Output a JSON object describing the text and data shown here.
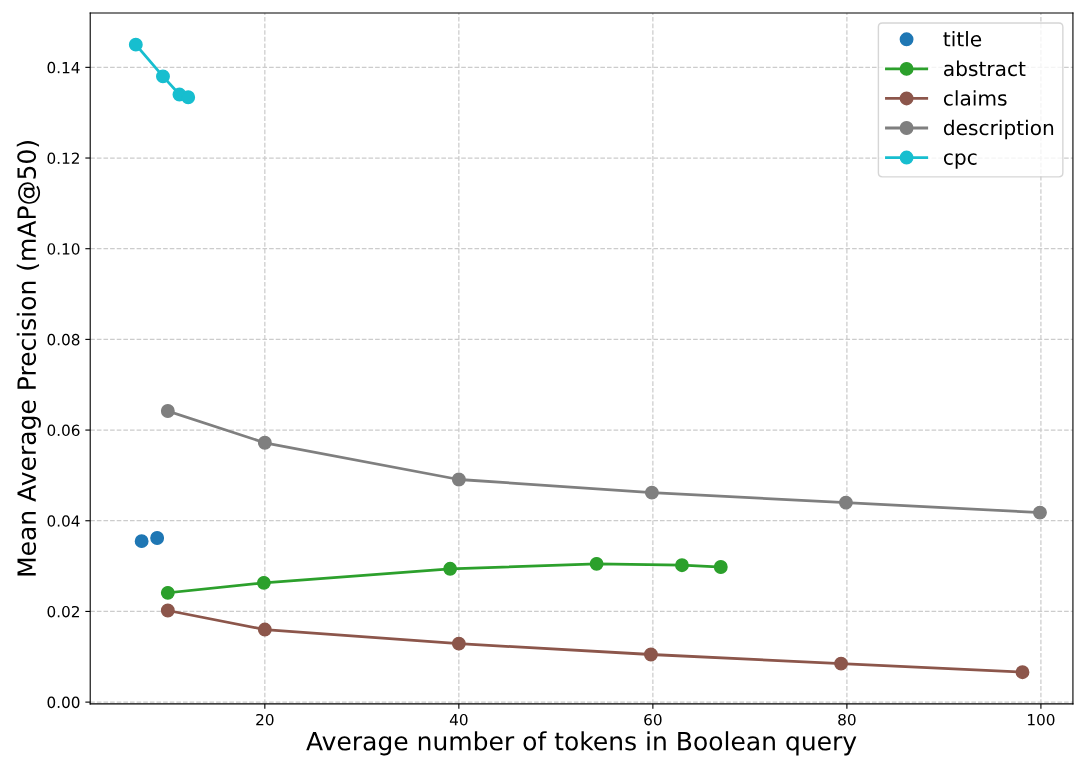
{
  "chart_data": {
    "type": "line",
    "xlabel": "Average number of tokens in Boolean query",
    "ylabel": "Mean Average Precision (mAP@50)",
    "xlim": [
      2,
      103.3
    ],
    "ylim": [
      -0.0004,
      0.152
    ],
    "xticks": [
      20,
      40,
      60,
      80,
      100
    ],
    "yticks": [
      {
        "value": 0,
        "label": "0.00"
      },
      {
        "value": 0.02,
        "label": "0.02"
      },
      {
        "value": 0.04,
        "label": "0.04"
      },
      {
        "value": 0.06,
        "label": "0.06"
      },
      {
        "value": 0.08,
        "label": "0.08"
      },
      {
        "value": 0.1,
        "label": "0.10"
      },
      {
        "value": 0.12,
        "label": "0.12"
      },
      {
        "value": 0.14,
        "label": "0.14"
      }
    ],
    "grid": true,
    "legend": "top right",
    "marker": "circle",
    "line_style": "solid",
    "series": [
      {
        "name": "title",
        "type": "scatter",
        "color": "#1f77b4",
        "x": [
          7.3,
          8.9
        ],
        "values": [
          0.0355,
          0.0362
        ]
      },
      {
        "name": "abstract",
        "color": "#2ca02c",
        "x": [
          10.0,
          19.9,
          39.1,
          54.2,
          63.0,
          67.0
        ],
        "values": [
          0.0241,
          0.0263,
          0.0294,
          0.0305,
          0.0302,
          0.0298
        ]
      },
      {
        "name": "claims",
        "color": "#8c564b",
        "x": [
          10.0,
          20.0,
          40.0,
          59.8,
          79.4,
          98.1
        ],
        "values": [
          0.0202,
          0.016,
          0.0129,
          0.0105,
          0.0085,
          0.0066
        ]
      },
      {
        "name": "description",
        "color": "#7f7f7f",
        "x": [
          10.0,
          20.0,
          40.0,
          59.9,
          79.9,
          99.9
        ],
        "values": [
          0.0642,
          0.0572,
          0.0491,
          0.0462,
          0.044,
          0.0418
        ]
      },
      {
        "name": "cpc",
        "color": "#17becf",
        "x": [
          6.7,
          9.5,
          11.2,
          12.1
        ],
        "values": [
          0.145,
          0.138,
          0.134,
          0.1334
        ]
      }
    ]
  }
}
